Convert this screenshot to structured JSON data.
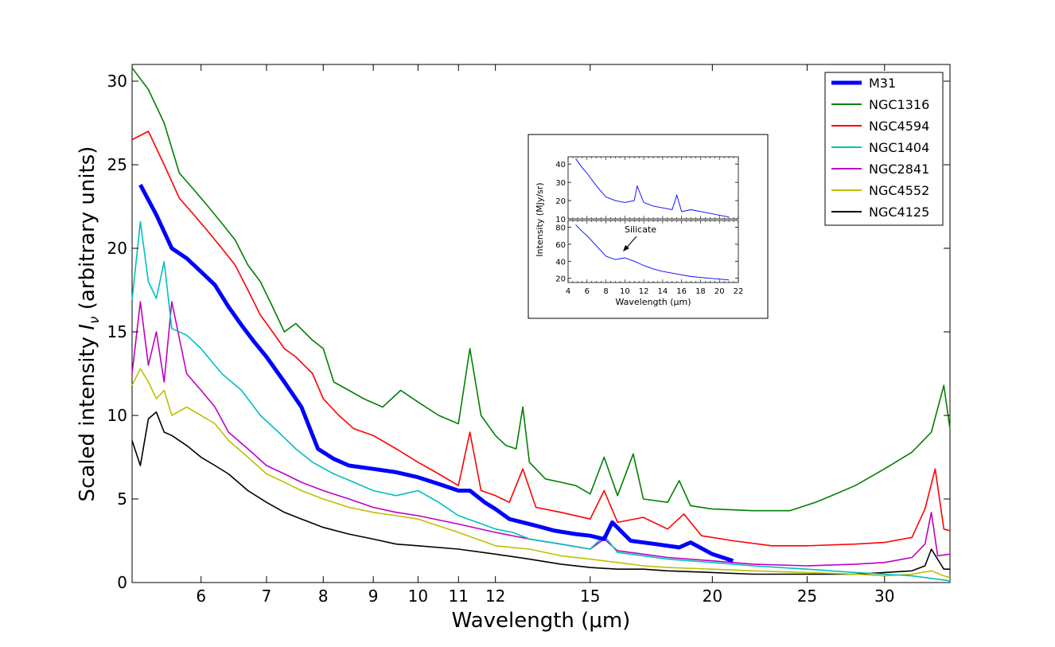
{
  "chart_data": [
    {
      "type": "line",
      "title": "",
      "xlabel": "Wavelength (μm)",
      "ylabel": "Scaled intensity I_ν (arbitrary units)",
      "xscale": "log",
      "xlim": [
        5.1,
        35.0
      ],
      "ylim": [
        0,
        31
      ],
      "xticks": [
        6,
        7,
        8,
        9,
        10,
        11,
        12,
        15,
        20,
        25,
        30
      ],
      "yticks": [
        0,
        5,
        10,
        15,
        20,
        25,
        30
      ],
      "grid": false,
      "legend_position": "top-right",
      "series": [
        {
          "name": "M31",
          "color": "#0000ff",
          "emphasis": "thick",
          "x": [
            5.2,
            5.4,
            5.6,
            5.8,
            6.0,
            6.2,
            6.4,
            6.6,
            6.8,
            7.0,
            7.3,
            7.6,
            7.9,
            8.2,
            8.5,
            9.0,
            9.5,
            10.0,
            10.5,
            11.0,
            11.3,
            11.7,
            12.0,
            12.4,
            12.8,
            13.2,
            13.8,
            14.5,
            15.0,
            15.5,
            15.8,
            16.5,
            17.5,
            18.5,
            19.0,
            20.0,
            21.0
          ],
          "y": [
            23.8,
            22.0,
            20.0,
            19.4,
            18.6,
            17.8,
            16.5,
            15.4,
            14.4,
            13.5,
            12.0,
            10.5,
            8.0,
            7.4,
            7.0,
            6.8,
            6.6,
            6.3,
            5.9,
            5.5,
            5.5,
            4.8,
            4.4,
            3.8,
            3.6,
            3.4,
            3.1,
            2.9,
            2.8,
            2.6,
            3.6,
            2.5,
            2.3,
            2.1,
            2.4,
            1.7,
            1.3
          ]
        },
        {
          "name": "NGC1316",
          "color": "#008000",
          "x": [
            5.1,
            5.3,
            5.5,
            5.7,
            5.9,
            6.1,
            6.3,
            6.5,
            6.7,
            6.9,
            7.1,
            7.3,
            7.5,
            7.8,
            8.0,
            8.2,
            8.5,
            8.8,
            9.2,
            9.6,
            10.0,
            10.5,
            11.0,
            11.3,
            11.6,
            12.0,
            12.3,
            12.6,
            12.8,
            13.0,
            13.5,
            14.0,
            14.5,
            15.0,
            15.5,
            16.0,
            16.6,
            17.0,
            18.0,
            18.5,
            19.0,
            20.0,
            22.0,
            24.0,
            25.5,
            26.5,
            28.0,
            30.0,
            32.0,
            33.5,
            34.5,
            35.0
          ],
          "y": [
            30.8,
            29.5,
            27.5,
            24.5,
            23.5,
            22.5,
            21.5,
            20.5,
            19.0,
            18.0,
            16.5,
            15.0,
            15.5,
            14.5,
            14.0,
            12.0,
            11.5,
            11.0,
            10.5,
            11.5,
            10.8,
            10.0,
            9.5,
            14.0,
            10.0,
            8.8,
            8.2,
            8.0,
            10.5,
            7.2,
            6.2,
            6.0,
            5.8,
            5.3,
            7.5,
            5.2,
            7.7,
            5.0,
            4.8,
            6.1,
            4.6,
            4.4,
            4.3,
            4.3,
            4.8,
            5.2,
            5.8,
            6.8,
            7.8,
            9.0,
            11.8,
            9.2
          ]
        },
        {
          "name": "NGC4594",
          "color": "#ff0000",
          "x": [
            5.1,
            5.3,
            5.5,
            5.7,
            5.9,
            6.1,
            6.3,
            6.5,
            6.7,
            6.9,
            7.1,
            7.3,
            7.5,
            7.8,
            8.0,
            8.3,
            8.6,
            9.0,
            9.5,
            10.0,
            10.5,
            11.0,
            11.3,
            11.6,
            12.0,
            12.4,
            12.8,
            13.2,
            14.0,
            15.0,
            15.5,
            16.0,
            17.0,
            18.0,
            18.7,
            19.5,
            21.0,
            23.0,
            25.0,
            28.0,
            30.0,
            32.0,
            33.0,
            33.8,
            34.5,
            35.0
          ],
          "y": [
            26.5,
            27.0,
            25.0,
            23.0,
            22.0,
            21.0,
            20.0,
            19.0,
            17.5,
            16.0,
            15.0,
            14.0,
            13.5,
            12.5,
            11.0,
            10.0,
            9.2,
            8.8,
            8.0,
            7.2,
            6.5,
            5.8,
            9.0,
            5.5,
            5.2,
            4.8,
            6.8,
            4.5,
            4.2,
            3.8,
            5.5,
            3.6,
            3.9,
            3.2,
            4.1,
            2.8,
            2.5,
            2.2,
            2.2,
            2.3,
            2.4,
            2.7,
            4.4,
            6.8,
            3.2,
            3.1
          ]
        },
        {
          "name": "NGC1404",
          "color": "#00bfbf",
          "x": [
            5.1,
            5.2,
            5.3,
            5.4,
            5.5,
            5.6,
            5.8,
            6.0,
            6.3,
            6.6,
            6.9,
            7.2,
            7.5,
            7.8,
            8.2,
            8.6,
            9.0,
            9.5,
            10.0,
            10.5,
            11.0,
            11.5,
            12.0,
            12.5,
            13.0,
            14.0,
            15.0,
            15.5,
            16.0,
            17.0,
            18.0,
            20.0,
            22.0,
            25.0,
            28.0,
            30.0,
            32.0,
            34.0,
            35.0
          ],
          "y": [
            16.9,
            21.6,
            18.0,
            17.0,
            19.2,
            15.2,
            14.8,
            14.0,
            12.5,
            11.5,
            10.0,
            9.0,
            8.0,
            7.2,
            6.5,
            6.0,
            5.5,
            5.2,
            5.5,
            4.8,
            4.0,
            3.6,
            3.2,
            3.0,
            2.6,
            2.3,
            2.0,
            2.8,
            1.8,
            1.6,
            1.4,
            1.2,
            1.0,
            0.8,
            0.6,
            0.5,
            0.4,
            0.2,
            0.1
          ]
        },
        {
          "name": "NGC2841",
          "color": "#bf00bf",
          "x": [
            5.1,
            5.2,
            5.3,
            5.4,
            5.5,
            5.6,
            5.8,
            6.0,
            6.2,
            6.4,
            6.7,
            7.0,
            7.3,
            7.6,
            8.0,
            8.5,
            9.0,
            9.5,
            10.0,
            11.0,
            12.0,
            13.0,
            14.0,
            15.0,
            15.5,
            16.0,
            17.0,
            18.0,
            20.0,
            22.0,
            25.0,
            28.0,
            30.0,
            32.0,
            33.0,
            33.5,
            34.0,
            35.0
          ],
          "y": [
            12.5,
            16.8,
            13.0,
            15.0,
            12.0,
            16.8,
            12.5,
            11.5,
            10.5,
            9.0,
            8.0,
            7.0,
            6.5,
            6.0,
            5.5,
            5.0,
            4.5,
            4.2,
            4.0,
            3.5,
            3.0,
            2.6,
            2.3,
            2.0,
            2.6,
            1.9,
            1.7,
            1.5,
            1.3,
            1.1,
            1.0,
            1.1,
            1.2,
            1.5,
            2.3,
            4.2,
            1.6,
            1.7
          ]
        },
        {
          "name": "NGC4552",
          "color": "#bfbf00",
          "x": [
            5.1,
            5.2,
            5.3,
            5.4,
            5.5,
            5.6,
            5.8,
            6.0,
            6.2,
            6.4,
            6.7,
            7.0,
            7.3,
            7.6,
            8.0,
            8.5,
            9.0,
            9.5,
            10.0,
            11.0,
            12.0,
            13.0,
            14.0,
            15.0,
            16.0,
            17.0,
            18.0,
            20.0,
            22.0,
            25.0,
            28.0,
            30.0,
            32.0,
            33.5,
            34.5,
            35.0
          ],
          "y": [
            11.8,
            12.8,
            12.0,
            11.0,
            11.5,
            10.0,
            10.5,
            10.0,
            9.5,
            8.5,
            7.5,
            6.5,
            6.0,
            5.5,
            5.0,
            4.5,
            4.2,
            4.0,
            3.8,
            3.0,
            2.2,
            2.0,
            1.6,
            1.4,
            1.2,
            1.0,
            0.9,
            0.8,
            0.7,
            0.6,
            0.5,
            0.4,
            0.5,
            0.7,
            0.4,
            0.3
          ]
        },
        {
          "name": "NGC4125",
          "color": "#000000",
          "x": [
            5.1,
            5.2,
            5.3,
            5.4,
            5.5,
            5.6,
            5.8,
            6.0,
            6.2,
            6.4,
            6.7,
            7.0,
            7.3,
            7.6,
            8.0,
            8.5,
            9.0,
            9.5,
            10.0,
            11.0,
            12.0,
            13.0,
            14.0,
            15.0,
            16.0,
            17.0,
            18.0,
            20.0,
            22.0,
            25.0,
            28.0,
            30.0,
            32.0,
            33.0,
            33.5,
            34.5,
            35.0
          ],
          "y": [
            8.5,
            7.0,
            9.8,
            10.2,
            9.0,
            8.8,
            8.2,
            7.5,
            7.0,
            6.5,
            5.5,
            4.8,
            4.2,
            3.8,
            3.3,
            2.9,
            2.6,
            2.3,
            2.2,
            2.0,
            1.7,
            1.4,
            1.1,
            0.9,
            0.8,
            0.8,
            0.7,
            0.6,
            0.5,
            0.5,
            0.5,
            0.6,
            0.7,
            1.0,
            2.0,
            0.8,
            0.8
          ]
        }
      ]
    },
    {
      "type": "line",
      "title": "",
      "panels": [
        {
          "ylabel": "Intensity (MJy/sr)",
          "ylim": [
            10,
            44
          ],
          "yticks": [
            10,
            20,
            30,
            40
          ],
          "color": "#0000ff",
          "x": [
            4.8,
            5.5,
            6.0,
            7.0,
            8.0,
            9.0,
            10.0,
            11.0,
            11.3,
            12.0,
            13.0,
            14.0,
            15.0,
            15.5,
            16.0,
            17.0,
            18.0,
            19.0,
            20.0,
            21.0
          ],
          "y": [
            43,
            38,
            35,
            28,
            22,
            20,
            19,
            20,
            28,
            19,
            17,
            16,
            15,
            23,
            14,
            15,
            14,
            13,
            12,
            11
          ]
        },
        {
          "ylabel": "Intensity (MJy/sr)",
          "ylim": [
            15,
            88
          ],
          "yticks": [
            20,
            40,
            60,
            80
          ],
          "color": "#0000ff",
          "annotation": "Silicate",
          "x": [
            4.8,
            5.5,
            6.0,
            7.0,
            8.0,
            9.0,
            10.0,
            11.0,
            12.0,
            13.0,
            14.0,
            15.0,
            16.0,
            17.0,
            18.0,
            19.0,
            20.0,
            21.0
          ],
          "y": [
            83,
            75,
            70,
            58,
            46,
            42,
            44,
            40,
            35,
            31,
            28,
            26,
            24,
            22,
            21,
            20,
            19,
            18
          ]
        }
      ],
      "xlabel": "Wavelength (μm)",
      "xlim": [
        4,
        22
      ],
      "xticks": [
        4,
        6,
        8,
        10,
        12,
        14,
        16,
        18,
        20,
        22
      ]
    }
  ]
}
